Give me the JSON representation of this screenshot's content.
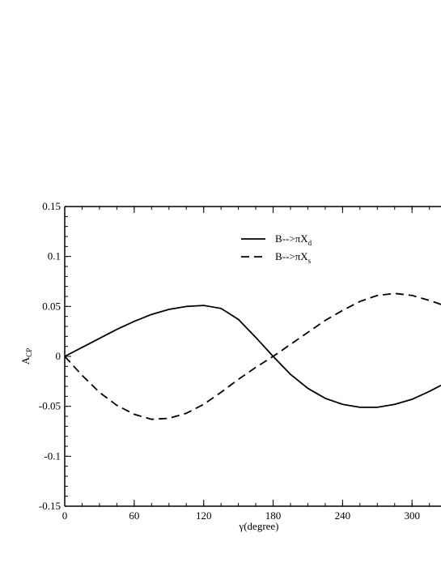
{
  "chart_data": {
    "type": "line",
    "xlabel": "γ(degree)",
    "ylabel": "A",
    "ylabel_sub": "CP",
    "x": [
      0,
      15,
      30,
      45,
      60,
      75,
      90,
      105,
      120,
      135,
      150,
      165,
      180,
      195,
      210,
      225,
      240,
      255,
      270,
      285,
      300,
      315,
      325
    ],
    "series": [
      {
        "name": "B-->πX",
        "name_sub": "d",
        "color": "#000000",
        "dash": "solid",
        "values": [
          0,
          0.009,
          0.018,
          0.027,
          0.035,
          0.042,
          0.047,
          0.05,
          0.051,
          0.048,
          0.037,
          0.019,
          0,
          -0.018,
          -0.032,
          -0.042,
          -0.048,
          -0.051,
          -0.051,
          -0.048,
          -0.043,
          -0.035,
          -0.029
        ]
      },
      {
        "name": "B-->πX",
        "name_sub": "s",
        "color": "#000000",
        "dash": "dashed",
        "values": [
          0,
          -0.019,
          -0.036,
          -0.049,
          -0.058,
          -0.063,
          -0.062,
          -0.057,
          -0.048,
          -0.036,
          -0.023,
          -0.011,
          0,
          0.012,
          0.024,
          0.036,
          0.046,
          0.055,
          0.061,
          0.063,
          0.061,
          0.056,
          0.052
        ]
      }
    ],
    "xlim": [
      0,
      325
    ],
    "ylim": [
      -0.15,
      0.15
    ],
    "xticks": [
      0,
      60,
      120,
      180,
      240,
      300
    ],
    "yticks": [
      -0.15,
      -0.1,
      -0.05,
      0,
      0.05,
      0.1,
      0.15
    ],
    "xminor": 15,
    "yminor": 0.01,
    "legend": "top-center",
    "grid": false
  }
}
